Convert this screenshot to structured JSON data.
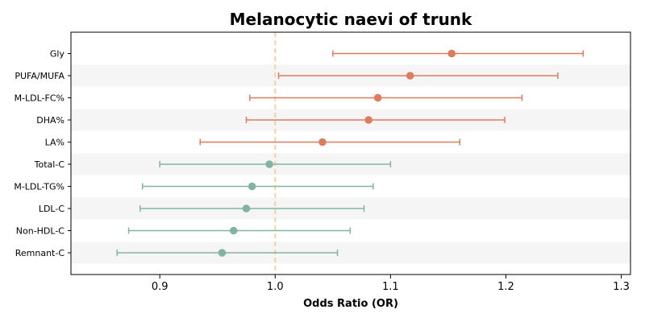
{
  "chart_data": {
    "type": "forest",
    "title": "Melanocytic naevi of trunk",
    "xlabel": "Odds Ratio (OR)",
    "ylabel": "",
    "xlim": [
      0.823,
      1.308
    ],
    "xticks": [
      0.9,
      1.0,
      1.1,
      1.2,
      1.3
    ],
    "xtick_labels": [
      "0.9",
      "1.0",
      "1.1",
      "1.2",
      "1.3"
    ],
    "reference_line": 1.0,
    "reference_line_color": "#f5c98f",
    "colors": {
      "risk": "#dd7c5e",
      "protective": "#82b59f",
      "band": "#f5f5f5"
    },
    "grid": false,
    "rows": [
      {
        "label": "Gly",
        "or": 1.153,
        "lo": 1.05,
        "hi": 1.267,
        "group": "risk"
      },
      {
        "label": "PUFA/MUFA",
        "or": 1.117,
        "lo": 1.003,
        "hi": 1.245,
        "group": "risk"
      },
      {
        "label": "M-LDL-FC%",
        "or": 1.089,
        "lo": 0.978,
        "hi": 1.214,
        "group": "risk"
      },
      {
        "label": "DHA%",
        "or": 1.081,
        "lo": 0.975,
        "hi": 1.199,
        "group": "risk"
      },
      {
        "label": "LA%",
        "or": 1.041,
        "lo": 0.935,
        "hi": 1.16,
        "group": "risk"
      },
      {
        "label": "Total-C",
        "or": 0.995,
        "lo": 0.9,
        "hi": 1.1,
        "group": "protective"
      },
      {
        "label": "M-LDL-TG%",
        "or": 0.98,
        "lo": 0.885,
        "hi": 1.085,
        "group": "protective"
      },
      {
        "label": "LDL-C",
        "or": 0.975,
        "lo": 0.883,
        "hi": 1.077,
        "group": "protective"
      },
      {
        "label": "Non-HDL-C",
        "or": 0.964,
        "lo": 0.873,
        "hi": 1.065,
        "group": "protective"
      },
      {
        "label": "Remnant-C",
        "or": 0.954,
        "lo": 0.863,
        "hi": 1.054,
        "group": "protective"
      }
    ]
  }
}
